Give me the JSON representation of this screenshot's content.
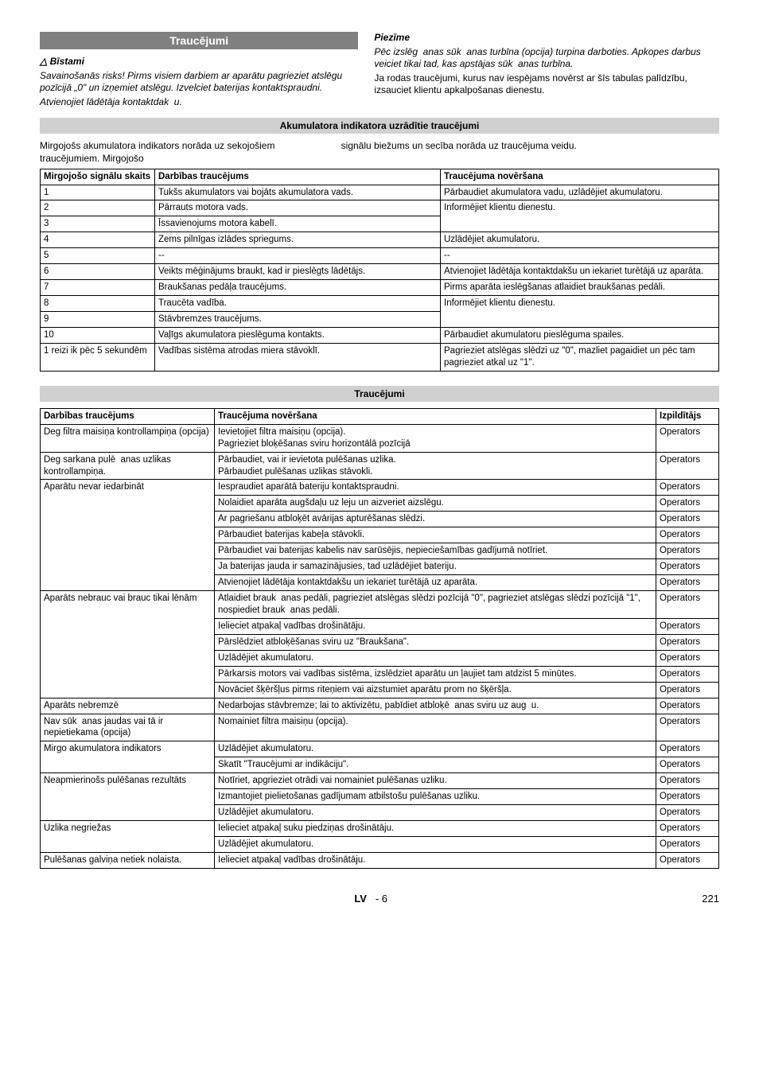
{
  "header1": "Traucējumi",
  "warning": {
    "symbol": "△",
    "title": "Bīstami",
    "body1": "Savainošanās risks! Pirms visiem darbiem ar aparātu pagrieziet atslēgu pozīcijā „0\" un izņemiet atslēgu. Izvelciet baterijas kontaktspraudni.",
    "body2": "Atvienojiet lādētāja kontaktdak  u."
  },
  "note": {
    "title": "Piezīme",
    "body1": "Pēc izslēg  anas sūk  anas turbīna (opcija) turpina darboties. Apkopes darbus veiciet tikai tad, kas apstājas sūk  anas turbīna.",
    "body2": "Ja rodas traucējumi, kurus nav iespējams novērst ar šīs tabulas palīdzību, izsauciet klientu apkalpošanas dienestu."
  },
  "section2": "Akumulatora indikatora uzrādītie traucējumi",
  "intro": {
    "left": "Mirgojošs akumulatora indikators norāda uz sekojošiem traucējumiem. Mirgojošo",
    "right": "signālu biežums un secība norāda uz traucējuma veidu."
  },
  "table1": {
    "headers": [
      "Mirgojošo signālu skaits",
      "Darbības traucējums",
      "Traucējuma novēršana"
    ],
    "rows": [
      [
        "1",
        "Tukšs akumulators vai bojāts akumulatora vads.",
        "Pārbaudiet akumulatora vadu, uzlādējiet akumulatoru."
      ],
      [
        "2",
        "Pārrauts motora vads.",
        "Informējiet klientu dienestu."
      ],
      [
        "3",
        "Īssavienojums motora kabelī.",
        ""
      ],
      [
        "4",
        "Zems pilnīgas izlādes spriegums.",
        "Uzlādējiet akumulatoru."
      ],
      [
        "5",
        "--",
        "--"
      ],
      [
        "6",
        "Veikts mēģinājums braukt, kad ir pieslēgts lādētājs.",
        "Atvienojiet lādētāja kontaktdakšu un iekariet turētājā uz aparāta."
      ],
      [
        "7",
        "Braukšanas pedāļa traucējums.",
        "Pirms aparāta ieslēgšanas atlaidiet braukšanas pedāli."
      ],
      [
        "8",
        "Traucēta vadība.",
        "Informējiet klientu dienestu."
      ],
      [
        "9",
        "Stāvbremzes traucējums.",
        ""
      ],
      [
        "10",
        "Vaļīgs akumulatora pieslēguma kontakts.",
        "Pārbaudiet akumulatoru pieslēguma spailes."
      ],
      [
        "1 reizi ik pēc 5 sekundēm",
        "Vadības sistēma atrodas miera stāvoklī.",
        "Pagrieziet atslēgas slēdzi uz \"0\", mazliet pagaidiet un pēc tam pagrieziet atkal uz \"1\"."
      ]
    ]
  },
  "section3": "Traucējumi",
  "table2": {
    "headers": [
      "Darbības traucējums",
      "Traucējuma novēršana",
      "Izpildītājs"
    ],
    "groups": [
      {
        "fault": "Deg filtra maisiņa kontrollampiņa (opcija)",
        "rows": [
          [
            "Ievietojiet filtra maisiņu (opcija).\nPagrieziet bloķēšanas sviru horizontālā pozīcijā",
            "Operators"
          ]
        ]
      },
      {
        "fault": "Deg sarkana pulē  anas uzlikas kontrollampiņa.",
        "rows": [
          [
            "Pārbaudiet, vai ir ievietota pulēšanas uzlika.\nPārbaudiet pulēšanas uzlikas stāvokli.",
            "Operators"
          ]
        ]
      },
      {
        "fault": "Aparātu nevar iedarbināt",
        "rows": [
          [
            "Iespraudiet aparātā bateriju kontaktspraudni.",
            "Operators"
          ],
          [
            "Nolaidiet aparāta augšdaļu uz leju un aizveriet aizslēgu.",
            "Operators"
          ],
          [
            "Ar pagriešanu atbloķēt avārijas apturēšanas slēdzi.",
            "Operators"
          ],
          [
            "Pārbaudiet baterijas kabeļa stāvokli.",
            "Operators"
          ],
          [
            "Pārbaudiet vai baterijas kabelis nav sarūsējis, nepieciešamības gadījumā notīriet.",
            "Operators"
          ],
          [
            "Ja baterijas jauda ir samazinājusies, tad uzlādējiet bateriju.",
            "Operators"
          ],
          [
            "Atvienojiet lādētāja kontaktdakšu un iekariet turētājā uz aparāta.",
            "Operators"
          ]
        ]
      },
      {
        "fault": "Aparāts nebrauc vai brauc tikai lēnām",
        "rows": [
          [
            "Atlaidiet brauk  anas pedāli, pagrieziet atslēgas slēdzi pozīcijā \"0\", pagrieziet atslēgas slēdzi pozīcijā \"1\", nospiediet brauk  anas pedāli.",
            "Operators"
          ],
          [
            "Ielieciet atpakaļ vadības drošinātāju.",
            "Operators"
          ],
          [
            "Pārslēdziet atbloķēšanas sviru uz \"Braukšana\".",
            "Operators"
          ],
          [
            "Uzlādējiet akumulatoru.",
            "Operators"
          ],
          [
            "Pārkarsis motors vai vadības sistēma, izslēdziet aparātu un ļaujiet tam atdzist 5 minūtes.",
            "Operators"
          ],
          [
            "Novāciet šķēršļus pirms riteņiem vai aizstumiet aparātu prom no šķēršļa.",
            "Operators"
          ]
        ]
      },
      {
        "fault": "Aparāts nebremzē",
        "rows": [
          [
            "Nedarbojas stāvbremze; lai to aktivizētu, pabīdiet atbloķē  anas sviru uz aug  u.",
            "Operators"
          ]
        ]
      },
      {
        "fault": "Nav sūk  anas jaudas vai tā ir nepietiekama (opcija)",
        "rows": [
          [
            "Nomainiet filtra maisiņu (opcija).",
            "Operators"
          ]
        ]
      },
      {
        "fault": "Mirgo akumulatora indikators",
        "rows": [
          [
            "Uzlādējiet akumulatoru.",
            "Operators"
          ],
          [
            "Skatīt \"Traucējumi ar indikāciju\".",
            "Operators"
          ]
        ]
      },
      {
        "fault": "Neapmierinošs pulēšanas rezultāts",
        "rows": [
          [
            "Notīriet, apgrieziet otrādi vai nomainiet pulēšanas uzliku.",
            "Operators"
          ],
          [
            "Izmantojiet pielietošanas gadījumam atbilstošu pulēšanas uzliku.",
            "Operators"
          ],
          [
            "Uzlādējiet akumulatoru.",
            "Operators"
          ]
        ]
      },
      {
        "fault": "Uzlika negriežas",
        "rows": [
          [
            "Ielieciet atpakaļ suku piedziņas drošinātāju.",
            "Operators"
          ],
          [
            "Uzlādējiet akumulatoru.",
            "Operators"
          ]
        ]
      },
      {
        "fault": "Pulēšanas galviņa netiek nolaista.",
        "rows": [
          [
            "Ielieciet atpakaļ vadības drošinātāju.",
            "Operators"
          ]
        ]
      }
    ]
  },
  "footer": {
    "lang": "LV",
    "page_section": "- 6",
    "page_num": "221"
  }
}
